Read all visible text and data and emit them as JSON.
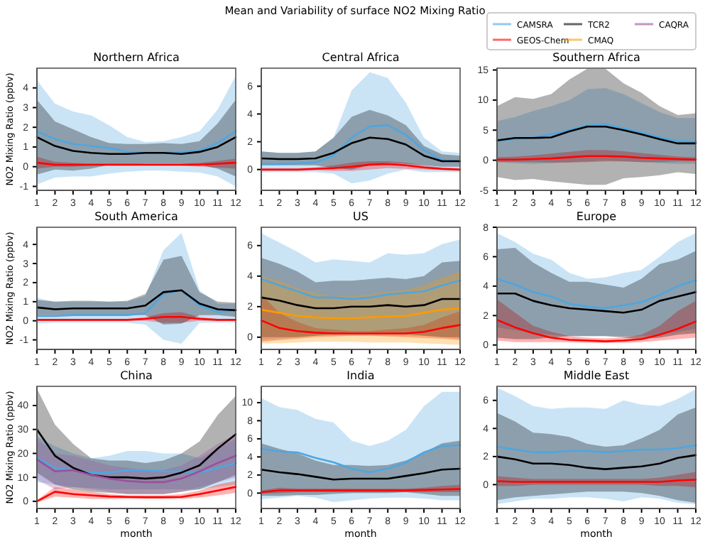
{
  "chart_data": [
    {
      "type": "line",
      "title": "Northern Africa",
      "legend": "top right",
      "ylabel": "NO2 Mixing Ratio (ppbv)",
      "annotations": [
        "Mean and Variability of surface NO2 Mixing Ratio"
      ],
      "x": [
        1,
        2,
        3,
        4,
        5,
        6,
        7,
        8,
        9,
        10,
        11,
        12
      ],
      "xlim": [
        1,
        12
      ],
      "xticks": [
        1,
        2,
        3,
        4,
        5,
        6,
        7,
        8,
        9,
        10,
        11,
        12
      ],
      "ylim": [
        -1.2,
        5.0
      ],
      "yticks": [
        -1,
        0,
        1,
        2,
        3,
        4
      ],
      "series": [
        {
          "name": "CAMSRA",
          "color": "#4ea6e0",
          "values": [
            1.8,
            1.4,
            1.15,
            1.05,
            0.95,
            0.75,
            0.7,
            0.7,
            0.75,
            0.8,
            1.2,
            1.8
          ],
          "upper": [
            4.4,
            3.2,
            2.8,
            2.6,
            2.1,
            1.5,
            1.25,
            1.3,
            1.5,
            1.8,
            2.9,
            4.6
          ],
          "lower": [
            -0.9,
            -0.55,
            -0.5,
            -0.5,
            -0.35,
            -0.25,
            -0.2,
            -0.2,
            -0.25,
            -0.3,
            -0.5,
            -1.0
          ]
        },
        {
          "name": "GEOS-Chem",
          "color": "#ff0000",
          "values": [
            0.2,
            0.1,
            0.1,
            0.1,
            0.1,
            0.1,
            0.1,
            0.1,
            0.1,
            0.1,
            0.15,
            0.2
          ],
          "upper": [
            0.5,
            0.25,
            0.2,
            0.15,
            0.15,
            0.15,
            0.15,
            0.15,
            0.15,
            0.2,
            0.3,
            0.4
          ],
          "lower": [
            -0.1,
            0,
            0,
            0.05,
            0.05,
            0.05,
            0.05,
            0.05,
            0.05,
            0,
            -0.05,
            -0.1
          ]
        },
        {
          "name": "TCR2",
          "color": "#000000",
          "values": [
            1.5,
            1.05,
            0.8,
            0.7,
            0.65,
            0.65,
            0.7,
            0.7,
            0.65,
            0.75,
            1.0,
            1.5
          ],
          "upper": [
            3.4,
            2.3,
            1.9,
            1.5,
            1.2,
            1.15,
            1.15,
            1.2,
            1.15,
            1.3,
            2.2,
            3.4
          ],
          "lower": [
            -0.4,
            -0.15,
            -0.2,
            -0.1,
            0.1,
            0.1,
            0.15,
            0.15,
            0.15,
            0.1,
            -0.1,
            -0.5
          ]
        }
      ]
    },
    {
      "type": "line",
      "title": "Central Africa",
      "x": [
        1,
        2,
        3,
        4,
        5,
        6,
        7,
        8,
        9,
        10,
        11,
        12
      ],
      "xlim": [
        1,
        12
      ],
      "xticks": [
        1,
        2,
        3,
        4,
        5,
        6,
        7,
        8,
        9,
        10,
        11,
        12
      ],
      "ylim": [
        -1.5,
        7.3
      ],
      "yticks": [
        0,
        2,
        4,
        6
      ],
      "series": [
        {
          "name": "CAMSRA",
          "color": "#4ea6e0",
          "values": [
            0.4,
            0.4,
            0.45,
            0.5,
            1.0,
            2.3,
            3.1,
            3.2,
            2.5,
            1.4,
            0.7,
            0.6
          ],
          "upper": [
            1.3,
            1.2,
            1.2,
            1.3,
            2.3,
            5.7,
            7.0,
            6.6,
            4.8,
            2.3,
            1.3,
            1.2
          ],
          "lower": [
            -0.2,
            -0.2,
            -0.2,
            -0.2,
            -0.3,
            -1.0,
            -0.8,
            -0.3,
            0,
            -0.2,
            -0.2,
            -0.2
          ]
        },
        {
          "name": "GEOS-Chem",
          "color": "#ff0000",
          "values": [
            0,
            0,
            0,
            0.05,
            0.1,
            0.2,
            0.35,
            0.4,
            0.3,
            0.15,
            0.05,
            0
          ],
          "upper": [
            0.1,
            0.1,
            0.1,
            0.15,
            0.3,
            0.5,
            0.6,
            0.6,
            0.5,
            0.3,
            0.15,
            0.1
          ],
          "lower": [
            -0.1,
            -0.1,
            -0.1,
            -0.05,
            -0.1,
            -0.1,
            0,
            0.1,
            0.05,
            0,
            -0.05,
            -0.1
          ]
        },
        {
          "name": "TCR2",
          "color": "#000000",
          "values": [
            0.8,
            0.75,
            0.75,
            0.8,
            1.2,
            1.9,
            2.3,
            2.2,
            1.8,
            1.0,
            0.6,
            0.6
          ],
          "upper": [
            1.3,
            1.2,
            1.2,
            1.3,
            2.3,
            3.8,
            4.3,
            3.9,
            3.2,
            1.7,
            1.1,
            1.0
          ],
          "lower": [
            0.3,
            0.3,
            0.3,
            0.3,
            0.1,
            0,
            0.3,
            0.5,
            0.4,
            0.3,
            0.2,
            0.2
          ]
        }
      ]
    },
    {
      "type": "line",
      "title": "Southern Africa",
      "x": [
        1,
        2,
        3,
        4,
        5,
        6,
        7,
        8,
        9,
        10,
        11,
        12
      ],
      "xlim": [
        1,
        12
      ],
      "xticks": [
        1,
        2,
        3,
        4,
        5,
        6,
        7,
        8,
        9,
        10,
        11,
        12
      ],
      "ylim": [
        -5,
        15.3
      ],
      "yticks": [
        -5,
        0,
        5,
        10,
        15
      ],
      "series": [
        {
          "name": "CAMSRA",
          "color": "#4ea6e0",
          "values": [
            3.2,
            3.5,
            3.8,
            4.3,
            5,
            5.8,
            6,
            5.3,
            4.6,
            3.8,
            3.2,
            3.1
          ],
          "upper": [
            6.5,
            7.2,
            8.2,
            9.0,
            10,
            11.8,
            12,
            11,
            9.5,
            8,
            7,
            7
          ],
          "lower": [
            -0.3,
            -0.5,
            -0.6,
            -0.5,
            -0.3,
            -0.2,
            0,
            -0.2,
            -0.3,
            -0.5,
            -0.6,
            -0.6
          ]
        },
        {
          "name": "GEOS-Chem",
          "color": "#ff0000",
          "values": [
            0.1,
            0.1,
            0.2,
            0.3,
            0.5,
            0.7,
            0.7,
            0.6,
            0.4,
            0.3,
            0.2,
            0.1
          ],
          "upper": [
            0.5,
            0.6,
            0.8,
            1.1,
            1.4,
            1.7,
            1.7,
            1.5,
            1.2,
            0.9,
            0.6,
            0.5
          ],
          "lower": [
            -0.3,
            -0.3,
            -0.3,
            -0.4,
            -0.4,
            -0.3,
            -0.2,
            -0.2,
            -0.3,
            -0.3,
            -0.2,
            -0.2
          ]
        },
        {
          "name": "TCR2",
          "color": "#000000",
          "values": [
            3.3,
            3.7,
            3.7,
            3.8,
            4.8,
            5.6,
            5.6,
            5,
            4.3,
            3.5,
            2.8,
            2.8
          ],
          "upper": [
            9,
            10.5,
            10.2,
            11,
            13.4,
            15.2,
            15.2,
            12.8,
            11.2,
            9,
            7.5,
            7.8
          ],
          "lower": [
            -2.8,
            -3.3,
            -3.1,
            -3.5,
            -3.8,
            -4.1,
            -4.1,
            -3,
            -2.8,
            -2.5,
            -2,
            -2.3
          ]
        }
      ]
    },
    {
      "type": "line",
      "title": "South America",
      "ylabel": "NO2 Mixing Ratio (ppbv)",
      "x": [
        1,
        2,
        3,
        4,
        5,
        6,
        7,
        8,
        9,
        10,
        11,
        12
      ],
      "xlim": [
        1,
        12
      ],
      "xticks": [
        1,
        2,
        3,
        4,
        5,
        6,
        7,
        8,
        9,
        10,
        11,
        12
      ],
      "ylim": [
        -1.5,
        4.9
      ],
      "yticks": [
        -1,
        0,
        1,
        2,
        3,
        4
      ],
      "series": [
        {
          "name": "CAMSRA",
          "color": "#4ea6e0",
          "values": [
            0.25,
            0.25,
            0.3,
            0.3,
            0.3,
            0.3,
            0.4,
            1.4,
            1.6,
            0.8,
            0.45,
            0.55
          ],
          "upper": [
            1.2,
            1.0,
            1.0,
            1.0,
            1.0,
            1.0,
            1.3,
            3.7,
            4.6,
            1.6,
            0.9,
            0.9
          ],
          "lower": [
            -0.15,
            -0.1,
            -0.1,
            -0.1,
            -0.1,
            -0.1,
            -0.2,
            -1.0,
            -1.2,
            -0.1,
            -0.1,
            -0.1
          ]
        },
        {
          "name": "GEOS-Chem",
          "color": "#ff0000",
          "values": [
            0.05,
            0.05,
            0.05,
            0.05,
            0.05,
            0.05,
            0.1,
            0.2,
            0.2,
            0.1,
            0.05,
            0.05
          ],
          "upper": [
            0.1,
            0.1,
            0.1,
            0.1,
            0.1,
            0.1,
            0.2,
            0.4,
            0.45,
            0.2,
            0.1,
            0.1
          ],
          "lower": [
            0,
            0,
            0,
            0,
            0,
            0,
            0,
            -0.1,
            -0.1,
            0,
            0,
            0
          ]
        },
        {
          "name": "TCR2",
          "color": "#000000",
          "values": [
            0.7,
            0.6,
            0.65,
            0.65,
            0.65,
            0.65,
            0.8,
            1.5,
            1.6,
            0.9,
            0.6,
            0.55
          ],
          "upper": [
            1.1,
            1.0,
            1.05,
            1.05,
            1.0,
            1.05,
            1.4,
            3.2,
            3.4,
            1.5,
            1.0,
            0.95
          ],
          "lower": [
            0.3,
            0.3,
            0.3,
            0.3,
            0.3,
            0.3,
            0.3,
            -0.2,
            -0.15,
            0.3,
            0.3,
            0.2
          ]
        }
      ]
    },
    {
      "type": "line",
      "title": "US",
      "x": [
        1,
        2,
        3,
        4,
        5,
        6,
        7,
        8,
        9,
        10,
        11,
        12
      ],
      "xlim": [
        1,
        12
      ],
      "xticks": [
        1,
        2,
        3,
        4,
        5,
        6,
        7,
        8,
        9,
        10,
        11,
        12
      ],
      "ylim": [
        -0.8,
        7.2
      ],
      "yticks": [
        0,
        2,
        4,
        6
      ],
      "series": [
        {
          "name": "CAMSRA",
          "color": "#4ea6e0",
          "values": [
            3.8,
            3.4,
            3.0,
            2.6,
            2.6,
            2.5,
            2.6,
            2.8,
            2.9,
            3.0,
            3.4,
            3.7
          ],
          "upper": [
            6.8,
            6.2,
            5.6,
            4.9,
            5.1,
            5.0,
            4.9,
            5.5,
            5.4,
            5.5,
            6.1,
            6.4
          ],
          "lower": [
            -0.2,
            -0.1,
            0,
            0.1,
            0.1,
            0.1,
            0.1,
            0.1,
            0.1,
            0.1,
            0,
            -0.1
          ]
        },
        {
          "name": "GEOS-Chem",
          "color": "#ff0000",
          "values": [
            1.1,
            0.6,
            0.4,
            0.3,
            0.25,
            0.25,
            0.25,
            0.25,
            0.25,
            0.35,
            0.6,
            0.8
          ],
          "upper": [
            2.8,
            1.6,
            1.0,
            0.6,
            0.5,
            0.4,
            0.4,
            0.5,
            0.6,
            0.8,
            1.3,
            1.7
          ],
          "lower": [
            -0.3,
            -0.2,
            -0.1,
            0,
            0.05,
            0.1,
            0.1,
            0.05,
            0,
            -0.05,
            -0.1,
            -0.2
          ]
        },
        {
          "name": "TCR2",
          "color": "#000000",
          "values": [
            2.6,
            2.4,
            2.1,
            1.9,
            1.9,
            2.0,
            2.0,
            2.1,
            2.0,
            2.1,
            2.5,
            2.5
          ],
          "upper": [
            5.2,
            4.8,
            4.3,
            3.6,
            3.7,
            3.7,
            3.8,
            3.9,
            3.8,
            4.0,
            4.9,
            5.0
          ],
          "lower": [
            0,
            0,
            0,
            0.1,
            0.2,
            0.3,
            0.3,
            0.3,
            0.2,
            0.1,
            0,
            0
          ]
        },
        {
          "name": "CMAQ",
          "color": "#ff9900",
          "values": [
            1.8,
            1.6,
            1.4,
            1.3,
            1.25,
            1.25,
            1.3,
            1.35,
            1.4,
            1.6,
            1.8,
            1.9
          ],
          "upper": [
            4.0,
            3.7,
            3.2,
            2.9,
            2.7,
            2.7,
            2.8,
            3.0,
            3.1,
            3.4,
            3.9,
            4.3
          ],
          "lower": [
            -0.4,
            -0.4,
            -0.35,
            -0.3,
            -0.3,
            -0.3,
            -0.35,
            -0.35,
            -0.35,
            -0.4,
            -0.45,
            -0.5
          ]
        }
      ]
    },
    {
      "type": "line",
      "title": "Europe",
      "x": [
        1,
        2,
        3,
        4,
        5,
        6,
        7,
        8,
        9,
        10,
        11,
        12
      ],
      "xlim": [
        1,
        12
      ],
      "xticks": [
        1,
        2,
        3,
        4,
        5,
        6,
        7,
        8,
        9,
        10,
        11,
        12
      ],
      "ylim": [
        -0.3,
        8.0
      ],
      "yticks": [
        0,
        2,
        4,
        6,
        8
      ],
      "series": [
        {
          "name": "CAMSRA",
          "color": "#4ea6e0",
          "values": [
            4.5,
            4.1,
            3.6,
            3.3,
            2.8,
            2.6,
            2.5,
            2.7,
            2.9,
            3.4,
            4.0,
            4.4
          ],
          "upper": [
            7.6,
            7.0,
            6.2,
            5.8,
            4.9,
            4.5,
            4.6,
            4.9,
            5.1,
            6.0,
            7.0,
            7.6
          ],
          "lower": [
            1.2,
            1.0,
            0.8,
            0.7,
            0.6,
            0.6,
            0.6,
            0.6,
            0.6,
            0.7,
            0.9,
            1.1
          ]
        },
        {
          "name": "GEOS-Chem",
          "color": "#ff0000",
          "values": [
            1.7,
            1.2,
            0.8,
            0.5,
            0.35,
            0.3,
            0.25,
            0.3,
            0.4,
            0.7,
            1.1,
            1.6
          ],
          "upper": [
            3.1,
            2.2,
            1.3,
            0.9,
            0.6,
            0.5,
            0.45,
            0.5,
            0.7,
            1.3,
            2.3,
            3.0
          ],
          "lower": [
            0.3,
            0.2,
            0.2,
            0.2,
            0.2,
            0.15,
            0.15,
            0.15,
            0.2,
            0.3,
            0.4,
            0.5
          ]
        },
        {
          "name": "TCR2",
          "color": "#000000",
          "values": [
            3.5,
            3.5,
            3.0,
            2.7,
            2.5,
            2.4,
            2.3,
            2.2,
            2.4,
            3.0,
            3.3,
            3.6
          ],
          "upper": [
            6.5,
            6.6,
            5.6,
            4.9,
            4.3,
            4.3,
            4.1,
            3.9,
            4.5,
            5.5,
            5.8,
            6.4
          ],
          "lower": [
            0.5,
            0.4,
            0.4,
            0.5,
            0.6,
            0.6,
            0.6,
            0.5,
            0.4,
            0.5,
            0.7,
            0.8
          ]
        }
      ]
    },
    {
      "type": "line",
      "title": "China",
      "ylabel": "NO2 Mixing Ratio (ppbv)",
      "xlabel": "month",
      "x": [
        1,
        2,
        3,
        4,
        5,
        6,
        7,
        8,
        9,
        10,
        11,
        12
      ],
      "xlim": [
        1,
        12
      ],
      "xticks": [
        1,
        2,
        3,
        4,
        5,
        6,
        7,
        8,
        9,
        10,
        11,
        12
      ],
      "ylim": [
        -3,
        48
      ],
      "yticks": [
        0,
        10,
        20,
        30,
        40
      ],
      "series": [
        {
          "name": "CAMSRA",
          "color": "#4ea6e0",
          "values": [
            18,
            14,
            13,
            12,
            12,
            13,
            13,
            12.5,
            12.5,
            12,
            14,
            16
          ],
          "upper": [
            27,
            23,
            20,
            18,
            19,
            21,
            21,
            20,
            20,
            18,
            22,
            26
          ],
          "lower": [
            8,
            7,
            6,
            5.5,
            5,
            5,
            5,
            5,
            5,
            5,
            6,
            7
          ]
        },
        {
          "name": "GEOS-Chem",
          "color": "#ff0000",
          "values": [
            0,
            4,
            3,
            2.5,
            2,
            1.8,
            1.7,
            1.7,
            1.8,
            3,
            4.5,
            6
          ],
          "upper": [
            0.5,
            6,
            5,
            4,
            3,
            2.5,
            2.5,
            2.5,
            3,
            4.5,
            7,
            8.5
          ],
          "lower": [
            -0.5,
            2,
            1.5,
            1,
            1,
            1,
            1,
            1,
            1,
            1.5,
            2.5,
            3.5
          ]
        },
        {
          "name": "TCR2",
          "color": "#000000",
          "values": [
            30,
            19,
            14,
            11,
            10,
            10,
            9.5,
            10,
            12,
            15,
            22,
            28
          ],
          "upper": [
            47,
            32,
            24,
            18,
            17,
            17,
            16,
            17,
            20,
            25,
            36,
            44
          ],
          "lower": [
            12,
            7,
            5,
            4,
            3.5,
            3,
            3,
            3,
            4,
            5,
            8,
            11
          ]
        },
        {
          "name": "CAQRA",
          "color": "#9c4f9c",
          "values": [
            17.5,
            12.5,
            13,
            11,
            9.5,
            8.5,
            8,
            8,
            9.5,
            12.5,
            16,
            19
          ],
          "upper": [
            26,
            20,
            19,
            17,
            15,
            14,
            13,
            13,
            15,
            19,
            24,
            28
          ],
          "lower": [
            9,
            5,
            6,
            5,
            4,
            3,
            3,
            3,
            4,
            6,
            8,
            10
          ]
        }
      ]
    },
    {
      "type": "line",
      "title": "India",
      "xlabel": "month",
      "x": [
        1,
        2,
        3,
        4,
        5,
        6,
        7,
        8,
        9,
        10,
        11,
        12
      ],
      "xlim": [
        1,
        12
      ],
      "xticks": [
        1,
        2,
        3,
        4,
        5,
        6,
        7,
        8,
        9,
        10,
        11,
        12
      ],
      "ylim": [
        -1.7,
        11.8
      ],
      "yticks": [
        0,
        2,
        4,
        6,
        8,
        10
      ],
      "series": [
        {
          "name": "CAMSRA",
          "color": "#4ea6e0",
          "values": [
            4.9,
            4.6,
            4.5,
            3.9,
            3.4,
            2.7,
            2.3,
            2.7,
            3.4,
            4.5,
            5.2,
            5.3
          ],
          "upper": [
            10.5,
            9.5,
            9.2,
            8.2,
            7.8,
            5.8,
            5.2,
            5.8,
            7,
            9.6,
            11.2,
            11.2
          ],
          "lower": [
            -0.7,
            -0.5,
            -0.3,
            -0.5,
            -1.0,
            -0.8,
            -0.6,
            -0.5,
            -0.5,
            -0.6,
            -0.8,
            -0.8
          ]
        },
        {
          "name": "GEOS-Chem",
          "color": "#ff0000",
          "values": [
            0.1,
            0.3,
            0.3,
            0.3,
            0.3,
            0.3,
            0.3,
            0.3,
            0.3,
            0.35,
            0.4,
            0.45
          ],
          "upper": [
            0.3,
            0.6,
            0.5,
            0.5,
            0.5,
            0.5,
            0.5,
            0.5,
            0.5,
            0.6,
            0.8,
            0.9
          ],
          "lower": [
            -0.1,
            0,
            0.1,
            0.1,
            0.1,
            0.1,
            0.1,
            0.1,
            0.1,
            0.1,
            0.1,
            0.1
          ]
        },
        {
          "name": "TCR2",
          "color": "#000000",
          "values": [
            2.6,
            2.3,
            2.1,
            1.8,
            1.5,
            1.6,
            1.6,
            1.6,
            1.9,
            2.2,
            2.6,
            2.7
          ],
          "upper": [
            5.5,
            4.9,
            4.4,
            3.6,
            3.1,
            3.1,
            3.0,
            3.1,
            3.6,
            4.5,
            5.5,
            5.8
          ],
          "lower": [
            -0.3,
            -0.3,
            -0.2,
            -0.2,
            -0.1,
            0,
            0,
            0,
            0.1,
            -0.1,
            -0.3,
            -0.3
          ]
        }
      ]
    },
    {
      "type": "line",
      "title": "Middle East",
      "xlabel": "month",
      "x": [
        1,
        2,
        3,
        4,
        5,
        6,
        7,
        8,
        9,
        10,
        11,
        12
      ],
      "xlim": [
        1,
        12
      ],
      "xticks": [
        1,
        2,
        3,
        4,
        5,
        6,
        7,
        8,
        9,
        10,
        11,
        12
      ],
      "ylim": [
        -1.7,
        7.0
      ],
      "yticks": [
        0,
        2,
        4,
        6
      ],
      "series": [
        {
          "name": "CAMSRA",
          "color": "#4ea6e0",
          "values": [
            2.7,
            2.5,
            2.3,
            2.3,
            2.4,
            2.4,
            2.3,
            2.4,
            2.5,
            2.5,
            2.6,
            2.8
          ],
          "upper": [
            6.9,
            6.3,
            5.6,
            5.4,
            5.5,
            5.5,
            5.4,
            6.0,
            5.7,
            5.6,
            6.1,
            6.8
          ],
          "lower": [
            -1.4,
            -1.2,
            -1.0,
            -1.0,
            -0.9,
            -0.9,
            -1.0,
            -1.2,
            -0.9,
            -1.0,
            -1.3,
            -1.4
          ]
        },
        {
          "name": "GEOS-Chem",
          "color": "#ff0000",
          "values": [
            0.25,
            0.2,
            0.2,
            0.2,
            0.2,
            0.2,
            0.2,
            0.2,
            0.2,
            0.2,
            0.3,
            0.35
          ],
          "upper": [
            0.6,
            0.5,
            0.4,
            0.4,
            0.4,
            0.4,
            0.4,
            0.4,
            0.4,
            0.5,
            0.7,
            0.9
          ],
          "lower": [
            -0.1,
            -0.1,
            0,
            0,
            0,
            0,
            0,
            0,
            0,
            -0.1,
            -0.1,
            -0.2
          ]
        },
        {
          "name": "TCR2",
          "color": "#000000",
          "values": [
            2.0,
            1.8,
            1.5,
            1.5,
            1.4,
            1.2,
            1.1,
            1.2,
            1.3,
            1.5,
            1.9,
            2.1
          ],
          "upper": [
            5.1,
            4.5,
            3.7,
            3.6,
            3.4,
            2.9,
            2.7,
            2.8,
            3.3,
            3.9,
            5.0,
            5.5
          ],
          "lower": [
            -1.1,
            -0.9,
            -0.8,
            -0.7,
            -0.6,
            -0.5,
            -0.5,
            -0.5,
            -0.6,
            -0.8,
            -1.1,
            -1.3
          ]
        }
      ]
    }
  ]
}
